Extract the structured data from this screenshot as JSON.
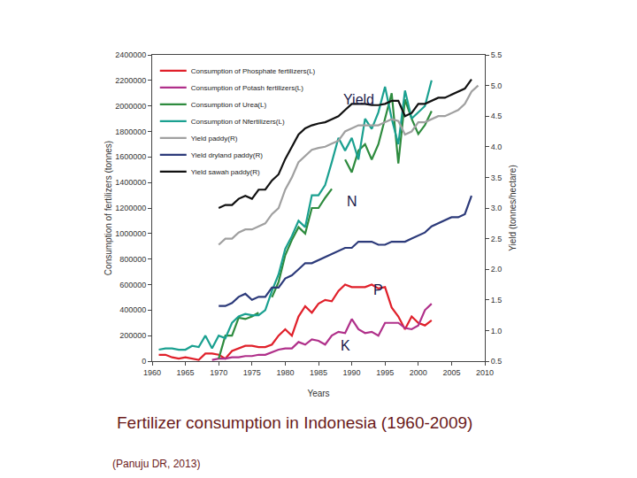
{
  "chart_data": {
    "type": "line",
    "title": "Fertilizer consumption in Indonesia (1960-2009)",
    "subtitle": "(Panuju DR, 2013)",
    "x_label": "Years",
    "y_label": "Consumption of fertilizers (tonnes)",
    "y2_label": "Yield (tonnes/hectare)",
    "xlim": [
      1960,
      2010
    ],
    "xticks": [
      1960,
      1965,
      1970,
      1975,
      1980,
      1985,
      1990,
      1995,
      2000,
      2005,
      2010
    ],
    "ylim": [
      0,
      2400000
    ],
    "yticks": [
      0,
      200000,
      400000,
      600000,
      800000,
      1000000,
      1200000,
      1400000,
      1600000,
      1800000,
      2000000,
      2200000,
      2400000
    ],
    "y2lim": [
      0.5,
      5.5
    ],
    "y2ticks": [
      0.5,
      {
        "value": 1,
        "label": "1.0"
      },
      1.5,
      {
        "value": 2,
        "label": "2.0"
      },
      2.5,
      {
        "value": 3,
        "label": "3.0"
      },
      3.5,
      {
        "value": 4,
        "label": "4.0"
      },
      4.5,
      {
        "value": 5,
        "label": "5.0"
      },
      5.5
    ],
    "grid": false,
    "legend": "top left",
    "series": [
      {
        "name": "Consumption of Phosphate fertilizers(L)",
        "color": "#e0202a",
        "x": [
          1961,
          1962,
          1963,
          1964,
          1965,
          1966,
          1967,
          1968,
          1969,
          1970,
          1971,
          1972,
          1973,
          1974,
          1975,
          1976,
          1977,
          1978,
          1979,
          1980,
          1981,
          1982,
          1983,
          1984,
          1985,
          1986,
          1987,
          1988,
          1989,
          1990,
          1991,
          1992,
          1993,
          1994,
          1995,
          1996,
          1997,
          1998,
          1999,
          2000,
          2001,
          2002
        ],
        "values": [
          50000,
          50000,
          30000,
          20000,
          30000,
          20000,
          10000,
          60000,
          60000,
          50000,
          20000,
          80000,
          100000,
          120000,
          120000,
          110000,
          110000,
          130000,
          200000,
          250000,
          200000,
          350000,
          430000,
          380000,
          450000,
          480000,
          470000,
          550000,
          600000,
          580000,
          580000,
          580000,
          600000,
          570000,
          580000,
          420000,
          350000,
          250000,
          350000,
          300000,
          280000,
          320000
        ]
      },
      {
        "name": "Consumption of Potash fertilizers(L)",
        "color": "#b0308a",
        "x": [
          1969,
          1970,
          1971,
          1972,
          1973,
          1974,
          1975,
          1976,
          1977,
          1978,
          1979,
          1980,
          1981,
          1982,
          1983,
          1984,
          1985,
          1986,
          1987,
          1988,
          1989,
          1990,
          1991,
          1992,
          1993,
          1994,
          1995,
          1996,
          1997,
          1998,
          1999,
          2000,
          2001,
          2002
        ],
        "values": [
          10000,
          20000,
          20000,
          30000,
          30000,
          40000,
          40000,
          50000,
          50000,
          70000,
          90000,
          100000,
          100000,
          150000,
          130000,
          170000,
          160000,
          130000,
          200000,
          230000,
          220000,
          330000,
          250000,
          220000,
          230000,
          200000,
          300000,
          300000,
          300000,
          260000,
          250000,
          280000,
          400000,
          450000
        ]
      },
      {
        "name": "Consumption of Urea(L)",
        "color": "#2e8b3e",
        "x": [
          1970,
          1971,
          1972,
          1973,
          1974,
          1975,
          1976,
          1977,
          1978,
          1979,
          1980,
          1981,
          1982,
          1983,
          1984,
          1985,
          1986,
          1987,
          1988,
          1989,
          1990,
          1991,
          1992,
          1993,
          1994,
          1995,
          1996,
          1997,
          1998,
          1999,
          2000,
          2001,
          2002
        ],
        "values": [
          20000,
          200000,
          200000,
          340000,
          330000,
          350000,
          380000,
          null,
          500000,
          620000,
          830000,
          950000,
          1050000,
          1000000,
          1200000,
          1200000,
          1280000,
          1350000,
          null,
          1580000,
          1480000,
          1650000,
          1700000,
          1580000,
          1700000,
          1900000,
          2100000,
          1550000,
          2050000,
          1900000,
          1780000,
          1850000,
          1960000
        ]
      },
      {
        "name": "Consumption of Nfertilizers(L)",
        "color": "#1aa090",
        "x": [
          1961,
          1962,
          1963,
          1964,
          1965,
          1966,
          1967,
          1968,
          1969,
          1970,
          1971,
          1972,
          1973,
          1974,
          1975,
          1976,
          1977,
          1978,
          1979,
          1980,
          1981,
          1982,
          1983,
          1984,
          1985,
          1986,
          1987,
          1988,
          1989,
          1990,
          1991,
          1992,
          1993,
          1994,
          1995,
          1996,
          1997,
          1998,
          1999,
          2000,
          2001,
          2002
        ],
        "values": [
          90000,
          100000,
          100000,
          90000,
          90000,
          120000,
          110000,
          200000,
          100000,
          200000,
          180000,
          300000,
          350000,
          370000,
          360000,
          360000,
          400000,
          550000,
          680000,
          880000,
          980000,
          1100000,
          1050000,
          1300000,
          1300000,
          1380000,
          1560000,
          1750000,
          1650000,
          1750000,
          1580000,
          1900000,
          1820000,
          1950000,
          2150000,
          1900000,
          1700000,
          2120000,
          1900000,
          1950000,
          2000000,
          2200000
        ]
      },
      {
        "name": "Yield paddy(R)",
        "color": "#a0a0a0",
        "axis": "y2",
        "x": [
          1970,
          1971,
          1972,
          1973,
          1974,
          1975,
          1976,
          1977,
          1978,
          1979,
          1980,
          1981,
          1982,
          1983,
          1984,
          1985,
          1986,
          1987,
          1988,
          1989,
          1990,
          1991,
          1992,
          1993,
          1994,
          1995,
          1996,
          1997,
          1998,
          1999,
          2000,
          2001,
          2002,
          2003,
          2004,
          2005,
          2006,
          2007,
          2008,
          2009
        ],
        "values": [
          2.4,
          2.5,
          2.5,
          2.6,
          2.65,
          2.65,
          2.7,
          2.75,
          2.9,
          3.0,
          3.3,
          3.5,
          3.75,
          3.85,
          3.95,
          3.98,
          4.0,
          4.05,
          4.1,
          4.25,
          4.3,
          4.35,
          4.35,
          4.35,
          4.35,
          4.4,
          4.45,
          4.42,
          4.2,
          4.25,
          4.4,
          4.4,
          4.45,
          4.5,
          4.5,
          4.55,
          4.6,
          4.7,
          4.9,
          5.0
        ]
      },
      {
        "name": "Yield dryland paddy(R)",
        "color": "#2c3a7a",
        "axis": "y2",
        "x": [
          1970,
          1971,
          1972,
          1973,
          1974,
          1975,
          1976,
          1977,
          1978,
          1979,
          1980,
          1981,
          1982,
          1983,
          1984,
          1985,
          1986,
          1987,
          1988,
          1989,
          1990,
          1991,
          1992,
          1993,
          1994,
          1995,
          1996,
          1997,
          1998,
          1999,
          2000,
          2001,
          2002,
          2003,
          2004,
          2005,
          2006,
          2007,
          2008
        ],
        "values": [
          1.4,
          1.4,
          1.45,
          1.55,
          1.6,
          1.5,
          1.55,
          1.55,
          1.7,
          1.7,
          1.85,
          1.9,
          2.0,
          2.1,
          2.1,
          2.15,
          2.2,
          2.25,
          2.3,
          2.35,
          2.35,
          2.45,
          2.45,
          2.45,
          2.4,
          2.4,
          2.45,
          2.45,
          2.45,
          2.5,
          2.55,
          2.6,
          2.7,
          2.75,
          2.8,
          2.85,
          2.85,
          2.9,
          3.2
        ]
      },
      {
        "name": "Yield sawah paddy(R)",
        "color": "#111111",
        "axis": "y2",
        "x": [
          1970,
          1971,
          1972,
          1973,
          1974,
          1975,
          1976,
          1977,
          1978,
          1979,
          1980,
          1981,
          1982,
          1983,
          1984,
          1985,
          1986,
          1987,
          1988,
          1989,
          1990,
          1991,
          1992,
          1993,
          1994,
          1995,
          1996,
          1997,
          1998,
          1999,
          2000,
          2001,
          2002,
          2003,
          2004,
          2005,
          2006,
          2007,
          2008
        ],
        "values": [
          3.0,
          3.05,
          3.05,
          3.15,
          3.2,
          3.15,
          3.3,
          3.3,
          3.45,
          3.55,
          3.8,
          4.0,
          4.2,
          4.3,
          4.35,
          4.38,
          4.4,
          4.45,
          4.5,
          4.6,
          4.7,
          4.7,
          4.7,
          4.68,
          4.68,
          4.7,
          4.75,
          4.75,
          4.5,
          4.55,
          4.7,
          4.7,
          4.75,
          4.8,
          4.8,
          4.85,
          4.9,
          4.95,
          5.1
        ]
      }
    ],
    "annotations": [
      {
        "text": "Yield",
        "x": 1991,
        "y": 2050000
      },
      {
        "text": "N",
        "x": 1990,
        "y": 1250000
      },
      {
        "text": "P",
        "x": 1994,
        "y": 560000
      },
      {
        "text": "K",
        "x": 1989,
        "y": 120000
      }
    ]
  }
}
